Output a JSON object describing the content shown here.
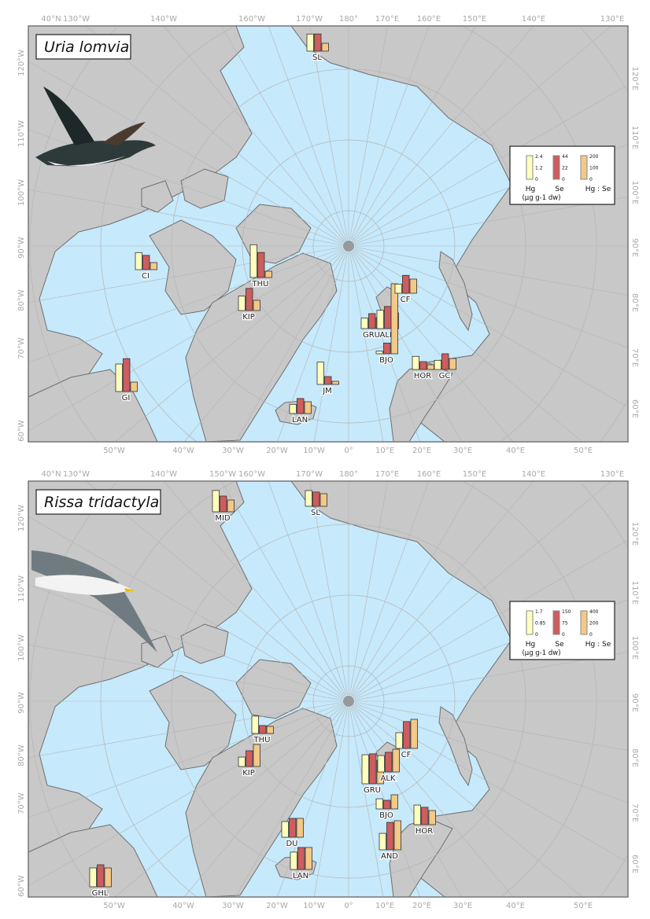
{
  "colors": {
    "ocean": "#c6e9fb",
    "land": "#c8c8c8",
    "coast": "#6e6e6e",
    "grid": "#b4b4b4",
    "hg": "#ffffbe",
    "se": "#cd5d5f",
    "ratio": "#f2c987"
  },
  "ticks": {
    "top": [
      "40°N",
      "130°W",
      "140°W",
      "150°W",
      "160°W",
      "170°W",
      "180°",
      "170°E",
      "160°E",
      "150°E",
      "140°E",
      "130°E"
    ],
    "bottom": [
      "50°W",
      "40°W",
      "30°W",
      "20°W",
      "10°W",
      "0°",
      "10°E",
      "20°E",
      "30°E",
      "40°E",
      "50°E"
    ],
    "left": [
      "120°W",
      "110°W",
      "100°W",
      "90°W",
      "80°W",
      "70°W",
      "60°W"
    ],
    "right": [
      "120°E",
      "110°E",
      "100°E",
      "90°E",
      "80°E",
      "70°E",
      "60°E"
    ]
  },
  "panels": [
    {
      "species": "Uria lomvia",
      "bird_icon": "thick-billed-murre",
      "legend": {
        "hg_ticks": [
          "2.4",
          "1.2",
          "0"
        ],
        "se_ticks": [
          "44",
          "22",
          "0"
        ],
        "ratio_ticks": [
          "200",
          "100",
          "0"
        ],
        "hg_label": "Hg",
        "se_label": "Se",
        "ratio_label": "Hg : Se",
        "unit": "(µg g-1 dw)",
        "hg_max": 2.4,
        "se_max": 44,
        "ratio_max": 200
      },
      "sites": [
        {
          "code": "SL",
          "hg": 1.3,
          "se": 24,
          "ratio": 50
        },
        {
          "code": "CI",
          "hg": 1.3,
          "se": 20,
          "ratio": 45
        },
        {
          "code": "THU",
          "hg": 2.5,
          "se": 35,
          "ratio": 40
        },
        {
          "code": "KIP",
          "hg": 1.1,
          "se": 31,
          "ratio": 65
        },
        {
          "code": "GI",
          "hg": 2.1,
          "se": 46,
          "ratio": 60
        },
        {
          "code": "JM",
          "hg": 1.7,
          "se": 11,
          "ratio": 20
        },
        {
          "code": "LAN",
          "hg": 0.7,
          "se": 21,
          "ratio": 75
        },
        {
          "code": "GRU",
          "hg": 0.8,
          "se": 21,
          "ratio": 70
        },
        {
          "code": "ALK",
          "hg": 1.4,
          "se": 31,
          "ratio": 100
        },
        {
          "code": "BJO",
          "hg": 0.2,
          "se": 15,
          "ratio": 445
        },
        {
          "code": "CF",
          "hg": 0.7,
          "se": 25,
          "ratio": 90
        },
        {
          "code": "HOR",
          "hg": 1.0,
          "se": 11,
          "ratio": 30
        },
        {
          "code": "GC",
          "hg": 0.7,
          "se": 22,
          "ratio": 70
        }
      ]
    },
    {
      "species": "Rissa tridactyla",
      "bird_icon": "black-legged-kittiwake",
      "legend": {
        "hg_ticks": [
          "1.7",
          "0.85",
          "0"
        ],
        "se_ticks": [
          "150",
          "75",
          "0"
        ],
        "ratio_ticks": [
          "400",
          "200",
          "0"
        ],
        "hg_label": "Hg",
        "se_label": "Se",
        "ratio_label": "Hg : Se",
        "unit": "(µg g-1 dw)",
        "hg_max": 1.7,
        "se_max": 150,
        "ratio_max": 400
      },
      "sites": [
        {
          "code": "MID",
          "hg": 1.15,
          "se": 75,
          "ratio": 150
        },
        {
          "code": "SL",
          "hg": 0.85,
          "se": 68,
          "ratio": 160
        },
        {
          "code": "THU",
          "hg": 0.94,
          "se": 38,
          "ratio": 90
        },
        {
          "code": "KIP",
          "hg": 0.51,
          "se": 75,
          "ratio": 280
        },
        {
          "code": "DU",
          "hg": 0.85,
          "se": 90,
          "ratio": 240
        },
        {
          "code": "LAN",
          "hg": 0.94,
          "se": 105,
          "ratio": 280
        },
        {
          "code": "GHL",
          "hg": 1.02,
          "se": 105,
          "ratio": 240
        },
        {
          "code": "GRU",
          "hg": 1.57,
          "se": 143,
          "ratio": 300
        },
        {
          "code": "ALK",
          "hg": 0.89,
          "se": 94,
          "ratio": 290
        },
        {
          "code": "CF",
          "hg": 0.85,
          "se": 128,
          "ratio": 370
        },
        {
          "code": "BJO",
          "hg": 0.55,
          "se": 41,
          "ratio": 180
        },
        {
          "code": "HOR",
          "hg": 1.06,
          "se": 83,
          "ratio": 180
        },
        {
          "code": "AND",
          "hg": 0.89,
          "se": 131,
          "ratio": 370
        }
      ]
    }
  ]
}
